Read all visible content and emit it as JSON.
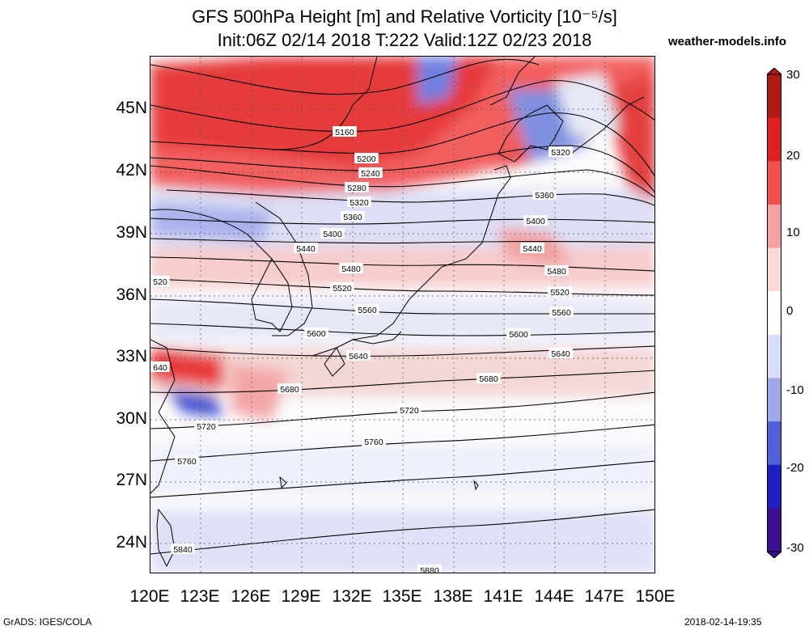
{
  "title_line1": "GFS 500hPa Height [m] and Relative Vorticity [10⁻⁵/s]",
  "title_line2": "Init:06Z 02/14 2018 T:222 Valid:12Z 02/23 2018",
  "site": "weather-models.info",
  "footer_left": "GrADS: IGES/COLA",
  "footer_right": "2018-02-14-19:35",
  "lat_labels": [
    "45N",
    "42N",
    "39N",
    "36N",
    "33N",
    "30N",
    "27N",
    "24N"
  ],
  "lon_labels": [
    "120E",
    "123E",
    "126E",
    "129E",
    "132E",
    "135E",
    "138E",
    "141E",
    "144E",
    "147E",
    "150E"
  ],
  "colorbar": {
    "labels": [
      "30",
      "20",
      "10",
      "0",
      "-10",
      "-20",
      "-30"
    ],
    "colors": [
      "#b01818",
      "#e02020",
      "#f05050",
      "#f6a0a0",
      "#fbd8d8",
      "#ffffff",
      "#d8dcf4",
      "#a0a8e8",
      "#5060d8",
      "#2020c0",
      "#3a1090"
    ]
  },
  "contours": [
    {
      "label": "5160"
    },
    {
      "label": "5200"
    },
    {
      "label": "5240"
    },
    {
      "label": "5280"
    },
    {
      "label": "5320"
    },
    {
      "label": "5360"
    },
    {
      "label": "5400"
    },
    {
      "label": "5440"
    },
    {
      "label": "5480"
    },
    {
      "label": "5520"
    },
    {
      "label": "5560"
    },
    {
      "label": "5600"
    },
    {
      "label": "5640"
    },
    {
      "label": "5680"
    },
    {
      "label": "5720"
    },
    {
      "label": "5760"
    },
    {
      "label": "5840"
    },
    {
      "label": "5880"
    }
  ],
  "contour_extra_labels": [
    "5320",
    "5360",
    "5400",
    "5440",
    "5480",
    "5520",
    "5560",
    "5600",
    "5640",
    "5680",
    "5720",
    "5760",
    "520",
    "640"
  ]
}
